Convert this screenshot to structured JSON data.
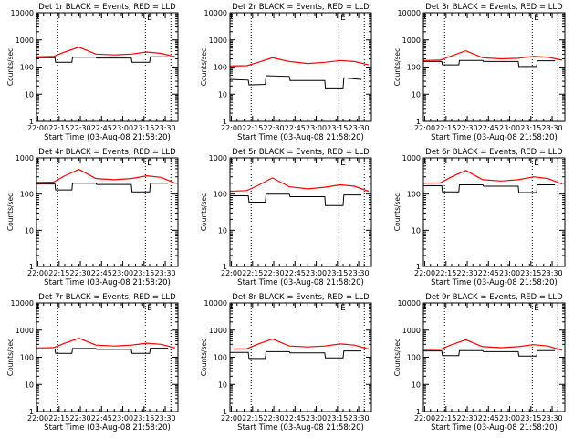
{
  "figure": {
    "background": "#ffffff",
    "axis_color": "#000000",
    "events_color": "#000000",
    "lld_color": "#ff0000"
  },
  "chart_data": [
    {
      "type": "line",
      "title": "Det 1r BLACK = Events, RED = LLD",
      "xlabel": "Start Time (03-Aug-08 21:58:20)",
      "ylabel": "Counts/sec",
      "yscale": "log",
      "ylim": [
        1,
        10000
      ],
      "yticks": [
        "1",
        "10",
        "100",
        "1000",
        "10000"
      ],
      "xlim": [
        0,
        100
      ],
      "xticks": [
        "22:00",
        "22:15",
        "22:30",
        "22:45",
        "23:00",
        "23:15",
        "23:30"
      ],
      "xtick_positions": [
        1,
        16,
        31,
        46,
        61,
        76,
        91
      ],
      "vlines": [
        15,
        77,
        95
      ],
      "marker_label": "E",
      "marker_x": 80,
      "series": [
        {
          "name": "Events",
          "color": "#000000",
          "x": [
            0,
            13,
            13.5,
            25,
            25.5,
            42,
            42.5,
            67,
            67.5,
            80,
            80.5,
            93
          ],
          "y": [
            220,
            220,
            150,
            150,
            230,
            230,
            215,
            215,
            150,
            150,
            240,
            240
          ]
        },
        {
          "name": "LLD",
          "color": "#ff0000",
          "x": [
            0,
            12,
            20,
            30,
            42,
            55,
            67,
            78,
            88,
            98
          ],
          "y": [
            240,
            245,
            360,
            540,
            300,
            280,
            300,
            360,
            320,
            240
          ]
        }
      ]
    },
    {
      "type": "line",
      "title": "Det 2r BLACK = Events, RED = LLD",
      "xlabel": "Start Time (03-Aug-08 21:58:20)",
      "ylabel": "Counts/sec",
      "yscale": "log",
      "ylim": [
        1,
        10000
      ],
      "yticks": [
        "1",
        "10",
        "100",
        "1000",
        "10000"
      ],
      "xlim": [
        0,
        100
      ],
      "xticks": [
        "22:00",
        "22:15",
        "22:30",
        "22:45",
        "23:00",
        "23:15",
        "23:30"
      ],
      "xtick_positions": [
        1,
        16,
        31,
        46,
        61,
        76,
        91
      ],
      "vlines": [
        15,
        77,
        95
      ],
      "marker_label": "E",
      "marker_x": 80,
      "series": [
        {
          "name": "Events",
          "color": "#000000",
          "x": [
            0,
            13,
            13.5,
            25,
            25.5,
            42,
            42.5,
            67,
            67.5,
            80,
            80.5,
            93
          ],
          "y": [
            35,
            33,
            22,
            23,
            48,
            45,
            32,
            32,
            17,
            17,
            40,
            35
          ]
        },
        {
          "name": "LLD",
          "color": "#ff0000",
          "x": [
            0,
            12,
            20,
            30,
            42,
            55,
            67,
            78,
            88,
            98
          ],
          "y": [
            110,
            112,
            150,
            220,
            160,
            135,
            150,
            175,
            160,
            120
          ]
        }
      ]
    },
    {
      "type": "line",
      "title": "Det 3r BLACK = Events, RED = LLD",
      "xlabel": "Start Time (03-Aug-08 21:58:20)",
      "ylabel": "Counts/sec",
      "yscale": "log",
      "ylim": [
        1,
        10000
      ],
      "yticks": [
        "1",
        "10",
        "100",
        "1000",
        "10000"
      ],
      "xlim": [
        0,
        100
      ],
      "xticks": [
        "22:00",
        "22:15",
        "22:30",
        "22:45",
        "23:00",
        "23:15",
        "23:30"
      ],
      "xtick_positions": [
        1,
        16,
        31,
        46,
        61,
        76,
        91
      ],
      "vlines": [
        15,
        77,
        95
      ],
      "marker_label": "E",
      "marker_x": 80,
      "series": [
        {
          "name": "Events",
          "color": "#000000",
          "x": [
            0,
            13,
            13.5,
            25,
            25.5,
            42,
            42.5,
            67,
            67.5,
            80,
            80.5,
            93
          ],
          "y": [
            160,
            160,
            120,
            120,
            175,
            175,
            160,
            160,
            105,
            105,
            170,
            170
          ]
        },
        {
          "name": "LLD",
          "color": "#ff0000",
          "x": [
            0,
            12,
            20,
            30,
            42,
            55,
            67,
            78,
            88,
            98
          ],
          "y": [
            175,
            180,
            260,
            400,
            220,
            200,
            210,
            250,
            230,
            180
          ]
        }
      ]
    },
    {
      "type": "line",
      "title": "Det 4r BLACK = Events, RED = LLD",
      "xlabel": "Start Time (03-Aug-08 21:58:20)",
      "ylabel": "Counts/sec",
      "yscale": "log",
      "ylim": [
        1,
        1000
      ],
      "yticks": [
        "1",
        "10",
        "100",
        "1000"
      ],
      "xlim": [
        0,
        100
      ],
      "xticks": [
        "22:00",
        "22:15",
        "22:30",
        "22:45",
        "23:00",
        "23:15",
        "23:30"
      ],
      "xtick_positions": [
        1,
        16,
        31,
        46,
        61,
        76,
        91
      ],
      "vlines": [
        15,
        77,
        95
      ],
      "marker_label": "E",
      "marker_x": 80,
      "series": [
        {
          "name": "Events",
          "color": "#000000",
          "x": [
            0,
            13,
            13.5,
            25,
            25.5,
            42,
            42.5,
            67,
            67.5,
            80,
            80.5,
            93
          ],
          "y": [
            190,
            190,
            130,
            130,
            200,
            200,
            185,
            185,
            115,
            115,
            200,
            200
          ]
        },
        {
          "name": "LLD",
          "color": "#ff0000",
          "x": [
            0,
            12,
            20,
            30,
            42,
            55,
            67,
            78,
            88,
            98
          ],
          "y": [
            210,
            215,
            320,
            480,
            270,
            250,
            270,
            320,
            290,
            200
          ]
        }
      ]
    },
    {
      "type": "line",
      "title": "Det 5r BLACK = Events, RED = LLD",
      "xlabel": "Start Time (03-Aug-08 21:58:20)",
      "ylabel": "Counts/sec",
      "yscale": "log",
      "ylim": [
        1,
        1000
      ],
      "yticks": [
        "1",
        "10",
        "100",
        "1000"
      ],
      "xlim": [
        0,
        100
      ],
      "xticks": [
        "22:00",
        "22:15",
        "22:30",
        "22:45",
        "23:00",
        "23:15",
        "23:30"
      ],
      "xtick_positions": [
        1,
        16,
        31,
        46,
        61,
        76,
        91
      ],
      "vlines": [
        15,
        77,
        95
      ],
      "marker_label": "E",
      "marker_x": 80,
      "series": [
        {
          "name": "Events",
          "color": "#000000",
          "x": [
            0,
            13,
            13.5,
            25,
            25.5,
            42,
            42.5,
            67,
            67.5,
            80,
            80.5,
            93
          ],
          "y": [
            90,
            90,
            60,
            60,
            100,
            100,
            85,
            85,
            48,
            48,
            95,
            95
          ]
        },
        {
          "name": "LLD",
          "color": "#ff0000",
          "x": [
            0,
            12,
            20,
            30,
            42,
            55,
            67,
            78,
            88,
            98
          ],
          "y": [
            120,
            125,
            175,
            280,
            160,
            140,
            155,
            180,
            165,
            120
          ]
        }
      ]
    },
    {
      "type": "line",
      "title": "Det 6r BLACK = Events, RED = LLD",
      "xlabel": "Start Time (03-Aug-08 21:58:20)",
      "ylabel": "Counts/sec",
      "yscale": "log",
      "ylim": [
        1,
        1000
      ],
      "yticks": [
        "1",
        "10",
        "100",
        "1000"
      ],
      "xlim": [
        0,
        100
      ],
      "xticks": [
        "22:00",
        "22:15",
        "22:30",
        "22:45",
        "23:00",
        "23:15",
        "23:30"
      ],
      "xtick_positions": [
        1,
        16,
        31,
        46,
        61,
        76,
        91
      ],
      "vlines": [
        15,
        77,
        95
      ],
      "marker_label": "E",
      "marker_x": 80,
      "series": [
        {
          "name": "Events",
          "color": "#000000",
          "x": [
            0,
            13,
            13.5,
            25,
            25.5,
            42,
            42.5,
            67,
            67.5,
            80,
            80.5,
            93
          ],
          "y": [
            170,
            170,
            115,
            115,
            180,
            180,
            165,
            165,
            110,
            110,
            180,
            180
          ]
        },
        {
          "name": "LLD",
          "color": "#ff0000",
          "x": [
            0,
            12,
            20,
            30,
            42,
            55,
            67,
            78,
            88,
            98
          ],
          "y": [
            200,
            205,
            300,
            450,
            250,
            230,
            250,
            300,
            270,
            190
          ]
        }
      ]
    },
    {
      "type": "line",
      "title": "Det 7r BLACK = Events, RED = LLD",
      "xlabel": "Start Time (03-Aug-08 21:58:20)",
      "ylabel": "Counts/sec",
      "yscale": "log",
      "ylim": [
        1,
        10000
      ],
      "yticks": [
        "1",
        "10",
        "100",
        "1000",
        "10000"
      ],
      "xlim": [
        0,
        100
      ],
      "xticks": [
        "22:00",
        "22:15",
        "22:30",
        "22:45",
        "23:00",
        "23:15",
        "23:30"
      ],
      "xtick_positions": [
        1,
        16,
        31,
        46,
        61,
        76,
        91
      ],
      "vlines": [
        15,
        77,
        95
      ],
      "marker_label": "E",
      "marker_x": 80,
      "series": [
        {
          "name": "Events",
          "color": "#000000",
          "x": [
            0,
            13,
            13.5,
            25,
            25.5,
            42,
            42.5,
            67,
            67.5,
            80,
            80.5,
            93
          ],
          "y": [
            200,
            200,
            140,
            140,
            210,
            210,
            195,
            195,
            140,
            140,
            215,
            215
          ]
        },
        {
          "name": "LLD",
          "color": "#ff0000",
          "x": [
            0,
            12,
            20,
            30,
            42,
            55,
            67,
            78,
            88,
            98
          ],
          "y": [
            220,
            225,
            330,
            500,
            280,
            260,
            280,
            330,
            300,
            220
          ]
        }
      ]
    },
    {
      "type": "line",
      "title": "Det 8r BLACK = Events, RED = LLD",
      "xlabel": "Start Time (03-Aug-08 21:58:20)",
      "ylabel": "Counts/sec",
      "yscale": "log",
      "ylim": [
        1,
        10000
      ],
      "yticks": [
        "1",
        "10",
        "100",
        "1000",
        "10000"
      ],
      "xlim": [
        0,
        100
      ],
      "xticks": [
        "22:00",
        "22:15",
        "22:30",
        "22:45",
        "23:00",
        "23:15",
        "23:30"
      ],
      "xtick_positions": [
        1,
        16,
        31,
        46,
        61,
        76,
        91
      ],
      "vlines": [
        15,
        77,
        95
      ],
      "marker_label": "E",
      "marker_x": 80,
      "series": [
        {
          "name": "Events",
          "color": "#000000",
          "x": [
            0,
            13,
            13.5,
            25,
            25.5,
            42,
            42.5,
            67,
            67.5,
            80,
            80.5,
            93
          ],
          "y": [
            150,
            150,
            90,
            90,
            160,
            160,
            145,
            145,
            95,
            95,
            170,
            170
          ]
        },
        {
          "name": "LLD",
          "color": "#ff0000",
          "x": [
            0,
            12,
            20,
            30,
            42,
            55,
            67,
            78,
            88,
            98
          ],
          "y": [
            200,
            205,
            310,
            470,
            260,
            240,
            260,
            310,
            280,
            200
          ]
        }
      ]
    },
    {
      "type": "line",
      "title": "Det 9r BLACK = Events, RED = LLD",
      "xlabel": "Start Time (03-Aug-08 21:58:20)",
      "ylabel": "Counts/sec",
      "yscale": "log",
      "ylim": [
        1,
        10000
      ],
      "yticks": [
        "1",
        "10",
        "100",
        "1000",
        "10000"
      ],
      "xlim": [
        0,
        100
      ],
      "xticks": [
        "22:00",
        "22:15",
        "22:30",
        "22:45",
        "23:00",
        "23:15",
        "23:30"
      ],
      "xtick_positions": [
        1,
        16,
        31,
        46,
        61,
        76,
        91
      ],
      "vlines": [
        15,
        77,
        95
      ],
      "marker_label": "E",
      "marker_x": 80,
      "series": [
        {
          "name": "Events",
          "color": "#000000",
          "x": [
            0,
            13,
            13.5,
            25,
            25.5,
            42,
            42.5,
            67,
            67.5,
            80,
            80.5,
            93
          ],
          "y": [
            170,
            170,
            115,
            115,
            175,
            175,
            160,
            160,
            110,
            110,
            175,
            175
          ]
        },
        {
          "name": "LLD",
          "color": "#ff0000",
          "x": [
            0,
            12,
            20,
            30,
            42,
            55,
            67,
            78,
            88,
            98
          ],
          "y": [
            190,
            195,
            290,
            440,
            245,
            225,
            245,
            290,
            260,
            180
          ]
        }
      ]
    }
  ]
}
